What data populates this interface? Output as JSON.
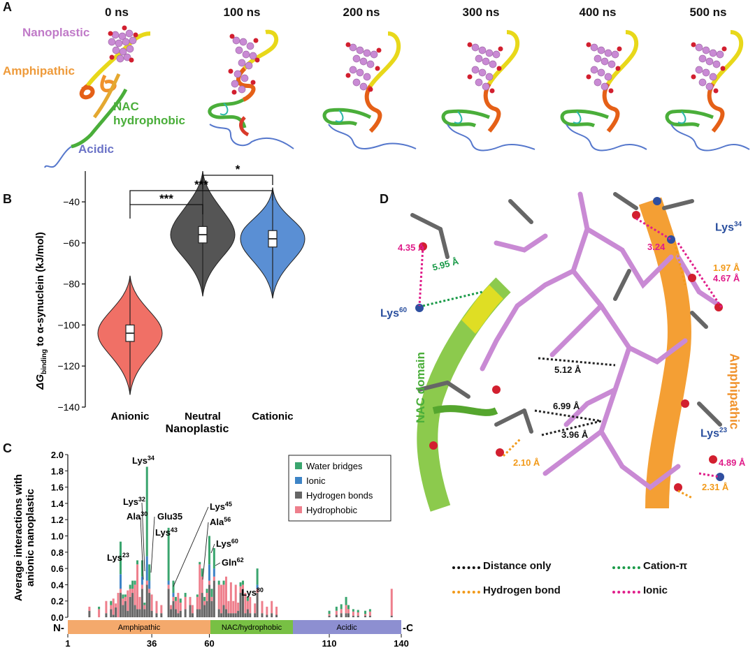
{
  "panel_labels": {
    "a": "A",
    "b": "B",
    "c": "C",
    "d": "D"
  },
  "panelA": {
    "frames": [
      "0 ns",
      "100 ns",
      "200 ns",
      "300 ns",
      "400 ns",
      "500 ns"
    ],
    "labels": {
      "nanoplastic": "Nanoplastic",
      "amphipathic": "Amphipathic",
      "nac1": "NAC",
      "nac2": "hydrophobic",
      "acidic": "Acidic"
    }
  },
  "panelB": {
    "ylabel_prefix": "ΔG",
    "ylabel_sub": "binding",
    "ylabel_suffix": " to α-synuclein (kJ/mol)",
    "xlabel": "Nanoplastic",
    "significance": [
      "***",
      "***",
      "*"
    ]
  },
  "panelC": {
    "ylabel_line1": "Average interactions with",
    "ylabel_line2": "anionic nanoplastic",
    "legend": [
      "Water bridges",
      "Ionic",
      "Hydrogen bonds",
      "Hydrophobic"
    ],
    "annotations": [
      {
        "base": "Lys",
        "sup": "23"
      },
      {
        "base": "Lys",
        "sup": "32"
      },
      {
        "base": "Ala",
        "sup": "30"
      },
      {
        "base": "Lys",
        "sup": "34"
      },
      {
        "base": "Glu35",
        "sup": ""
      },
      {
        "base": "Lys",
        "sup": "43"
      },
      {
        "base": "Lys",
        "sup": "45"
      },
      {
        "base": "Ala",
        "sup": "56"
      },
      {
        "base": "Lys",
        "sup": "60"
      },
      {
        "base": "Gln",
        "sup": "62"
      },
      {
        "base": "Lys",
        "sup": "80"
      }
    ],
    "domains": [
      "Amphipathic",
      "NAC/hydrophobic",
      "Acidic"
    ],
    "n_term": "N-",
    "c_term": "-C"
  },
  "panelD": {
    "distances": [
      "4.35 Å",
      "5.95 Å",
      "3.24",
      "1.97 Å",
      "4.67 Å",
      "5.12 Å",
      "6.99 Å",
      "3.96 Å",
      "2.10 Å",
      "4.89 Å",
      "2.31 Å"
    ],
    "residues": [
      {
        "base": "Lys",
        "sup": "60"
      },
      {
        "base": "Lys",
        "sup": "34"
      },
      {
        "base": "Lys",
        "sup": "23"
      }
    ],
    "domain_labels": [
      "NAC domain",
      "Amphipathic"
    ],
    "legend": [
      "Distance only",
      "Cation-π",
      "Hydrogen bond",
      "Ionic"
    ]
  },
  "chart_data": [
    {
      "type": "violin",
      "title": "",
      "xlabel": "Nanoplastic",
      "ylabel": "ΔG binding to α-synuclein (kJ/mol)",
      "categories": [
        "Anionic",
        "Neutral",
        "Cationic"
      ],
      "colors": [
        "#f07066",
        "#555555",
        "#5a8fd4"
      ],
      "medians": [
        -104,
        -56,
        -58
      ],
      "q1": [
        -108,
        -60,
        -62
      ],
      "q3": [
        -100,
        -52,
        -54
      ],
      "mins": [
        -134,
        -86,
        -87
      ],
      "maxs": [
        -76,
        -25,
        -33
      ],
      "ylim": [
        -140,
        -25
      ],
      "yticks": [
        -140,
        -120,
        -100,
        -80,
        -60,
        -40
      ],
      "significance_pairs": [
        [
          "Anionic",
          "Neutral",
          "***"
        ],
        [
          "Anionic",
          "Cationic",
          "***"
        ],
        [
          "Neutral",
          "Cationic",
          "*"
        ]
      ]
    },
    {
      "type": "bar",
      "stacked": true,
      "title": "",
      "xlabel": "",
      "ylabel": "Average interactions with anionic nanoplastic",
      "ylim": [
        0,
        2.0
      ],
      "yticks": [
        0.0,
        0.2,
        0.4,
        0.6,
        0.8,
        1.0,
        1.2,
        1.4,
        1.6,
        1.8,
        2.0
      ],
      "xlim": [
        1,
        140
      ],
      "xticks": [
        1,
        36,
        60,
        110,
        140
      ],
      "series": [
        {
          "name": "Water bridges",
          "color": "#3aa56e"
        },
        {
          "name": "Ionic",
          "color": "#3d84c6"
        },
        {
          "name": "Hydrogen bonds",
          "color": "#666666"
        },
        {
          "name": "Hydrophobic",
          "color": "#ee7f8c"
        }
      ],
      "residues": [
        {
          "x": 10,
          "hb": 0.08,
          "hp": 0.05,
          "io": 0,
          "wb": 0
        },
        {
          "x": 14,
          "hb": 0,
          "hp": 0.1,
          "io": 0,
          "wb": 0.03
        },
        {
          "x": 17,
          "hb": 0.05,
          "hp": 0.15,
          "io": 0,
          "wb": 0
        },
        {
          "x": 19,
          "hb": 0.1,
          "hp": 0.05,
          "io": 0,
          "wb": 0.05
        },
        {
          "x": 20,
          "hb": 0.03,
          "hp": 0.2,
          "io": 0,
          "wb": 0
        },
        {
          "x": 21,
          "hb": 0.12,
          "hp": 0.05,
          "io": 0,
          "wb": 0
        },
        {
          "x": 22,
          "hb": 0,
          "hp": 0.3,
          "io": 0,
          "wb": 0
        },
        {
          "x": 23,
          "hb": 0.3,
          "hp": 0.05,
          "io": 0.18,
          "wb": 0.4
        },
        {
          "x": 24,
          "hb": 0.15,
          "hp": 0.08,
          "io": 0,
          "wb": 0.05
        },
        {
          "x": 25,
          "hb": 0.2,
          "hp": 0.05,
          "io": 0,
          "wb": 0.03
        },
        {
          "x": 26,
          "hb": 0.08,
          "hp": 0.25,
          "io": 0,
          "wb": 0
        },
        {
          "x": 27,
          "hb": 0.25,
          "hp": 0.1,
          "io": 0,
          "wb": 0.05
        },
        {
          "x": 28,
          "hb": 0.3,
          "hp": 0.05,
          "io": 0,
          "wb": 0.1
        },
        {
          "x": 29,
          "hb": 0.15,
          "hp": 0.25,
          "io": 0,
          "wb": 0.05
        },
        {
          "x": 30,
          "hb": 0.1,
          "hp": 0.55,
          "io": 0,
          "wb": 0.05
        },
        {
          "x": 31,
          "hb": 0.1,
          "hp": 0.15,
          "io": 0,
          "wb": 0
        },
        {
          "x": 32,
          "hb": 0.35,
          "hp": 0.05,
          "io": 0.1,
          "wb": 0.2
        },
        {
          "x": 33,
          "hb": 0.1,
          "hp": 0.05,
          "io": 0,
          "wb": 0.03
        },
        {
          "x": 34,
          "hb": 0.4,
          "hp": 0.05,
          "io": 0.3,
          "wb": 1.1
        },
        {
          "x": 35,
          "hb": 0.3,
          "hp": 0.05,
          "io": 0.1,
          "wb": 0.2
        },
        {
          "x": 36,
          "hb": 0.08,
          "hp": 0.2,
          "io": 0,
          "wb": 0
        },
        {
          "x": 38,
          "hb": 0.05,
          "hp": 0.15,
          "io": 0,
          "wb": 0
        },
        {
          "x": 40,
          "hb": 0.05,
          "hp": 0.1,
          "io": 0,
          "wb": 0
        },
        {
          "x": 43,
          "hb": 0.35,
          "hp": 0.05,
          "io": 0.05,
          "wb": 0.65
        },
        {
          "x": 44,
          "hb": 0.1,
          "hp": 0.05,
          "io": 0,
          "wb": 0
        },
        {
          "x": 45,
          "hb": 0.2,
          "hp": 0.05,
          "io": 0.05,
          "wb": 0.15
        },
        {
          "x": 46,
          "hb": 0.1,
          "hp": 0.1,
          "io": 0,
          "wb": 0.05
        },
        {
          "x": 47,
          "hb": 0.05,
          "hp": 0.25,
          "io": 0,
          "wb": 0
        },
        {
          "x": 48,
          "hb": 0.08,
          "hp": 0.1,
          "io": 0,
          "wb": 0.05
        },
        {
          "x": 50,
          "hb": 0.1,
          "hp": 0.15,
          "io": 0,
          "wb": 0.05
        },
        {
          "x": 52,
          "hb": 0.15,
          "hp": 0.1,
          "io": 0,
          "wb": 0
        },
        {
          "x": 53,
          "hb": 0.05,
          "hp": 0.1,
          "io": 0,
          "wb": 0
        },
        {
          "x": 55,
          "hb": 0.1,
          "hp": 0.15,
          "io": 0,
          "wb": 0.03
        },
        {
          "x": 56,
          "hb": 0.1,
          "hp": 0.55,
          "io": 0,
          "wb": 0.03
        },
        {
          "x": 57,
          "hb": 0.3,
          "hp": 0.2,
          "io": 0,
          "wb": 0.1
        },
        {
          "x": 58,
          "hb": 0.15,
          "hp": 0.05,
          "io": 0,
          "wb": 0.05
        },
        {
          "x": 59,
          "hb": 0.2,
          "hp": 0.1,
          "io": 0,
          "wb": 0.05
        },
        {
          "x": 60,
          "hb": 0.4,
          "hp": 0.05,
          "io": 0.2,
          "wb": 0.35
        },
        {
          "x": 61,
          "hb": 0.2,
          "hp": 0.05,
          "io": 0,
          "wb": 0.1
        },
        {
          "x": 62,
          "hb": 0.45,
          "hp": 0.05,
          "io": 0.1,
          "wb": 0.25
        },
        {
          "x": 64,
          "hb": 0.1,
          "hp": 0.3,
          "io": 0,
          "wb": 0.05
        },
        {
          "x": 65,
          "hb": 0.05,
          "hp": 0.35,
          "io": 0,
          "wb": 0
        },
        {
          "x": 66,
          "hb": 0.15,
          "hp": 0.25,
          "io": 0,
          "wb": 0.05
        },
        {
          "x": 67,
          "hb": 0.1,
          "hp": 0.4,
          "io": 0,
          "wb": 0
        },
        {
          "x": 68,
          "hb": 0.05,
          "hp": 0.15,
          "io": 0,
          "wb": 0
        },
        {
          "x": 69,
          "hb": 0.05,
          "hp": 0.38,
          "io": 0,
          "wb": 0
        },
        {
          "x": 70,
          "hb": 0.05,
          "hp": 0.15,
          "io": 0,
          "wb": 0
        },
        {
          "x": 71,
          "hb": 0.05,
          "hp": 0.35,
          "io": 0,
          "wb": 0
        },
        {
          "x": 72,
          "hb": 0.08,
          "hp": 0.1,
          "io": 0,
          "wb": 0
        },
        {
          "x": 73,
          "hb": 0.3,
          "hp": 0.08,
          "io": 0,
          "wb": 0.05
        },
        {
          "x": 74,
          "hb": 0.35,
          "hp": 0.05,
          "io": 0,
          "wb": 0.05
        },
        {
          "x": 75,
          "hb": 0.05,
          "hp": 0.25,
          "io": 0,
          "wb": 0
        },
        {
          "x": 76,
          "hb": 0.1,
          "hp": 0.1,
          "io": 0,
          "wb": 0.05
        },
        {
          "x": 77,
          "hb": 0.05,
          "hp": 0.2,
          "io": 0,
          "wb": 0
        },
        {
          "x": 79,
          "hb": 0.05,
          "hp": 0.12,
          "io": 0,
          "wb": 0
        },
        {
          "x": 80,
          "hb": 0.3,
          "hp": 0.05,
          "io": 0.05,
          "wb": 0.2
        },
        {
          "x": 82,
          "hb": 0.05,
          "hp": 0.15,
          "io": 0,
          "wb": 0
        },
        {
          "x": 84,
          "hb": 0.03,
          "hp": 0.1,
          "io": 0,
          "wb": 0
        },
        {
          "x": 86,
          "hb": 0.05,
          "hp": 0.15,
          "io": 0,
          "wb": 0
        },
        {
          "x": 88,
          "hb": 0.03,
          "hp": 0.1,
          "io": 0,
          "wb": 0
        },
        {
          "x": 110,
          "hb": 0.02,
          "hp": 0.02,
          "io": 0,
          "wb": 0.04
        },
        {
          "x": 113,
          "hb": 0.03,
          "hp": 0.05,
          "io": 0,
          "wb": 0.05
        },
        {
          "x": 115,
          "hb": 0.05,
          "hp": 0.05,
          "io": 0,
          "wb": 0.06
        },
        {
          "x": 117,
          "hb": 0.05,
          "hp": 0.1,
          "io": 0,
          "wb": 0.1
        },
        {
          "x": 118,
          "hb": 0.05,
          "hp": 0.05,
          "io": 0,
          "wb": 0.05
        },
        {
          "x": 120,
          "hb": 0.02,
          "hp": 0.05,
          "io": 0,
          "wb": 0.03
        },
        {
          "x": 122,
          "hb": 0.02,
          "hp": 0.04,
          "io": 0,
          "wb": 0.03
        },
        {
          "x": 125,
          "hb": 0.02,
          "hp": 0.02,
          "io": 0,
          "wb": 0.04
        },
        {
          "x": 127,
          "hb": 0.02,
          "hp": 0.05,
          "io": 0,
          "wb": 0.03
        },
        {
          "x": 136,
          "hb": 0.02,
          "hp": 0.33,
          "io": 0,
          "wb": 0
        }
      ]
    }
  ]
}
